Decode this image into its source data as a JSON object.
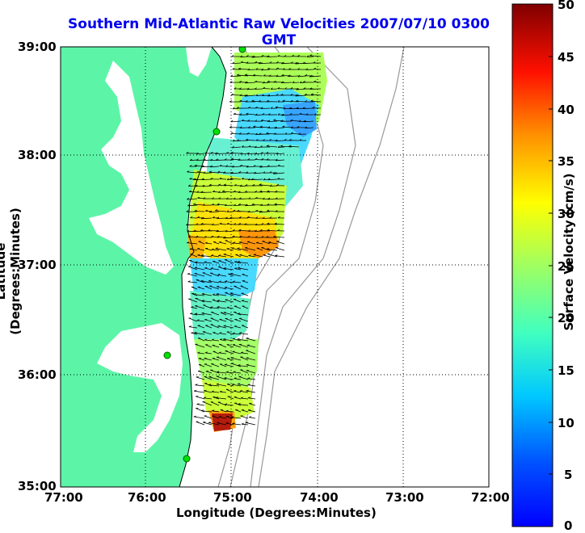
{
  "title": "Southern Mid-Atlantic Raw Velocities 2007/07/10 0300 GMT",
  "xlabel": "Longitude (Degrees:Minutes)",
  "ylabel": "Latitude (Degrees:Minutes)",
  "x_ticks": [
    "77:00",
    "76:00",
    "75:00",
    "74:00",
    "73:00",
    "72:00"
  ],
  "y_ticks": [
    "39:00",
    "38:00",
    "37:00",
    "36:00",
    "35:00"
  ],
  "colorbar": {
    "label": "Surface Velocity (cm/s)",
    "ticks": [
      "50",
      "45",
      "40",
      "35",
      "30",
      "25",
      "20",
      "15",
      "10",
      "5",
      "0"
    ]
  },
  "colors": {
    "land": "#5cf5a8",
    "title": "#0000ee"
  }
}
